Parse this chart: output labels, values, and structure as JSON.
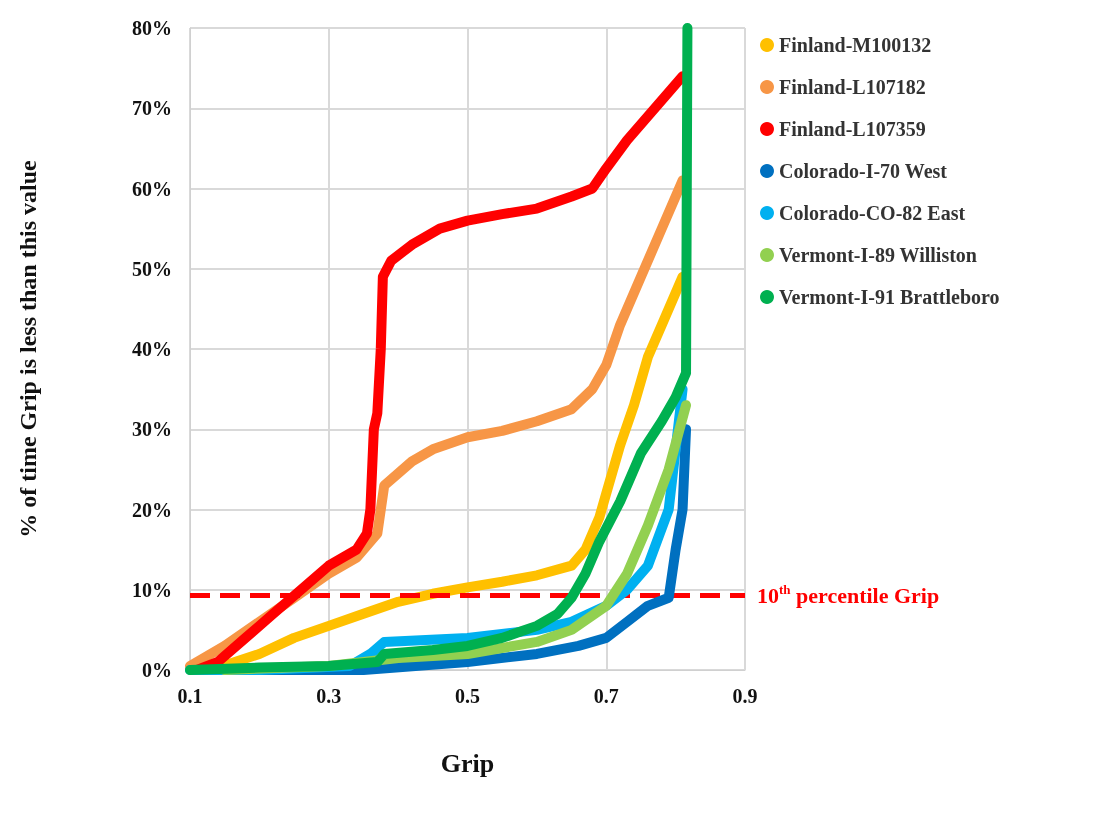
{
  "chart_data": {
    "type": "line",
    "xlabel": "Grip",
    "ylabel": "% of time Grip is less than this value",
    "xlim": [
      0.1,
      0.9
    ],
    "xticks": [
      0.1,
      0.3,
      0.5,
      0.7,
      0.9
    ],
    "ylim": [
      0,
      80
    ],
    "yticks": [
      {
        "value": 0,
        "label": "0%"
      },
      {
        "value": 10,
        "label": "10%"
      },
      {
        "value": 20,
        "label": "20%"
      },
      {
        "value": 30,
        "label": "30%"
      },
      {
        "value": 40,
        "label": "40%"
      },
      {
        "value": 50,
        "label": "50%"
      },
      {
        "value": 60,
        "label": "60%"
      },
      {
        "value": 70,
        "label": "70%"
      },
      {
        "value": 80,
        "label": "80%"
      }
    ],
    "grid": true,
    "legend": "right",
    "marker": "none",
    "line_style": "solid",
    "ref_lines": [
      {
        "axis": "y",
        "value": 9.3,
        "label": "10$^{th}$ percentile Grip",
        "color": "#ff0000",
        "line_style": "dashed"
      }
    ],
    "series": [
      {
        "name": "Finland-M100132",
        "color": "#ffc000",
        "x": [
          0.13,
          0.2,
          0.25,
          0.3,
          0.35,
          0.4,
          0.45,
          0.5,
          0.55,
          0.6,
          0.65,
          0.67,
          0.69,
          0.7,
          0.72,
          0.74,
          0.76,
          0.78,
          0.81
        ],
        "values": [
          0,
          2,
          4,
          5.5,
          7,
          8.5,
          9.5,
          10.3,
          11,
          11.8,
          13,
          15,
          19,
          22,
          28,
          33,
          39,
          43,
          49
        ]
      },
      {
        "name": "Finland-L107182",
        "color": "#f79646",
        "x": [
          0.1,
          0.15,
          0.2,
          0.25,
          0.3,
          0.34,
          0.37,
          0.38,
          0.42,
          0.45,
          0.5,
          0.55,
          0.6,
          0.65,
          0.68,
          0.7,
          0.72,
          0.75,
          0.78,
          0.81
        ],
        "values": [
          0.5,
          3,
          6,
          9,
          12,
          14,
          17,
          23,
          26,
          27.5,
          29,
          29.8,
          31,
          32.5,
          35,
          38,
          43,
          49,
          55,
          61
        ]
      },
      {
        "name": "Finland-L107359",
        "color": "#ff0000",
        "x": [
          0.11,
          0.14,
          0.18,
          0.22,
          0.26,
          0.3,
          0.34,
          0.355,
          0.36,
          0.365,
          0.37,
          0.375,
          0.378,
          0.39,
          0.42,
          0.46,
          0.5,
          0.55,
          0.6,
          0.65,
          0.68,
          0.7,
          0.73,
          0.76,
          0.79,
          0.81
        ],
        "values": [
          0,
          1,
          4,
          7,
          10,
          13,
          15,
          17,
          20,
          30,
          32,
          40,
          49,
          51,
          53,
          55,
          56,
          56.8,
          57.5,
          59,
          60,
          62.5,
          66,
          69,
          72,
          74
        ]
      },
      {
        "name": "Colorado-I-70 West",
        "color": "#0070c0",
        "x": [
          0.15,
          0.35,
          0.5,
          0.6,
          0.66,
          0.7,
          0.73,
          0.76,
          0.79,
          0.8,
          0.81,
          0.815
        ],
        "values": [
          0,
          0,
          1,
          2,
          3,
          4,
          6,
          8,
          9,
          15,
          20,
          30
        ]
      },
      {
        "name": "Colorado-CO-82 East",
        "color": "#00b0f0",
        "x": [
          0.1,
          0.2,
          0.33,
          0.36,
          0.38,
          0.5,
          0.6,
          0.65,
          0.7,
          0.73,
          0.76,
          0.79,
          0.81
        ],
        "values": [
          0,
          0,
          0.5,
          2,
          3.5,
          4,
          5,
          6,
          8,
          10,
          13,
          20,
          35
        ]
      },
      {
        "name": "Vermont-I-89 Williston",
        "color": "#92d050",
        "x": [
          0.15,
          0.3,
          0.4,
          0.5,
          0.6,
          0.65,
          0.7,
          0.73,
          0.76,
          0.79,
          0.815
        ],
        "values": [
          0,
          0.5,
          1.5,
          2,
          3.5,
          5,
          8,
          12,
          18,
          25,
          33
        ]
      },
      {
        "name": "Vermont-I-91 Brattleboro",
        "color": "#00b050",
        "x": [
          0.1,
          0.2,
          0.3,
          0.37,
          0.38,
          0.45,
          0.5,
          0.55,
          0.6,
          0.63,
          0.65,
          0.67,
          0.69,
          0.72,
          0.75,
          0.78,
          0.8,
          0.815,
          0.817
        ],
        "values": [
          0,
          0.3,
          0.5,
          1,
          2,
          2.5,
          3,
          4,
          5.5,
          7,
          9,
          12,
          16,
          21,
          27,
          31,
          34,
          37,
          80
        ]
      }
    ]
  }
}
